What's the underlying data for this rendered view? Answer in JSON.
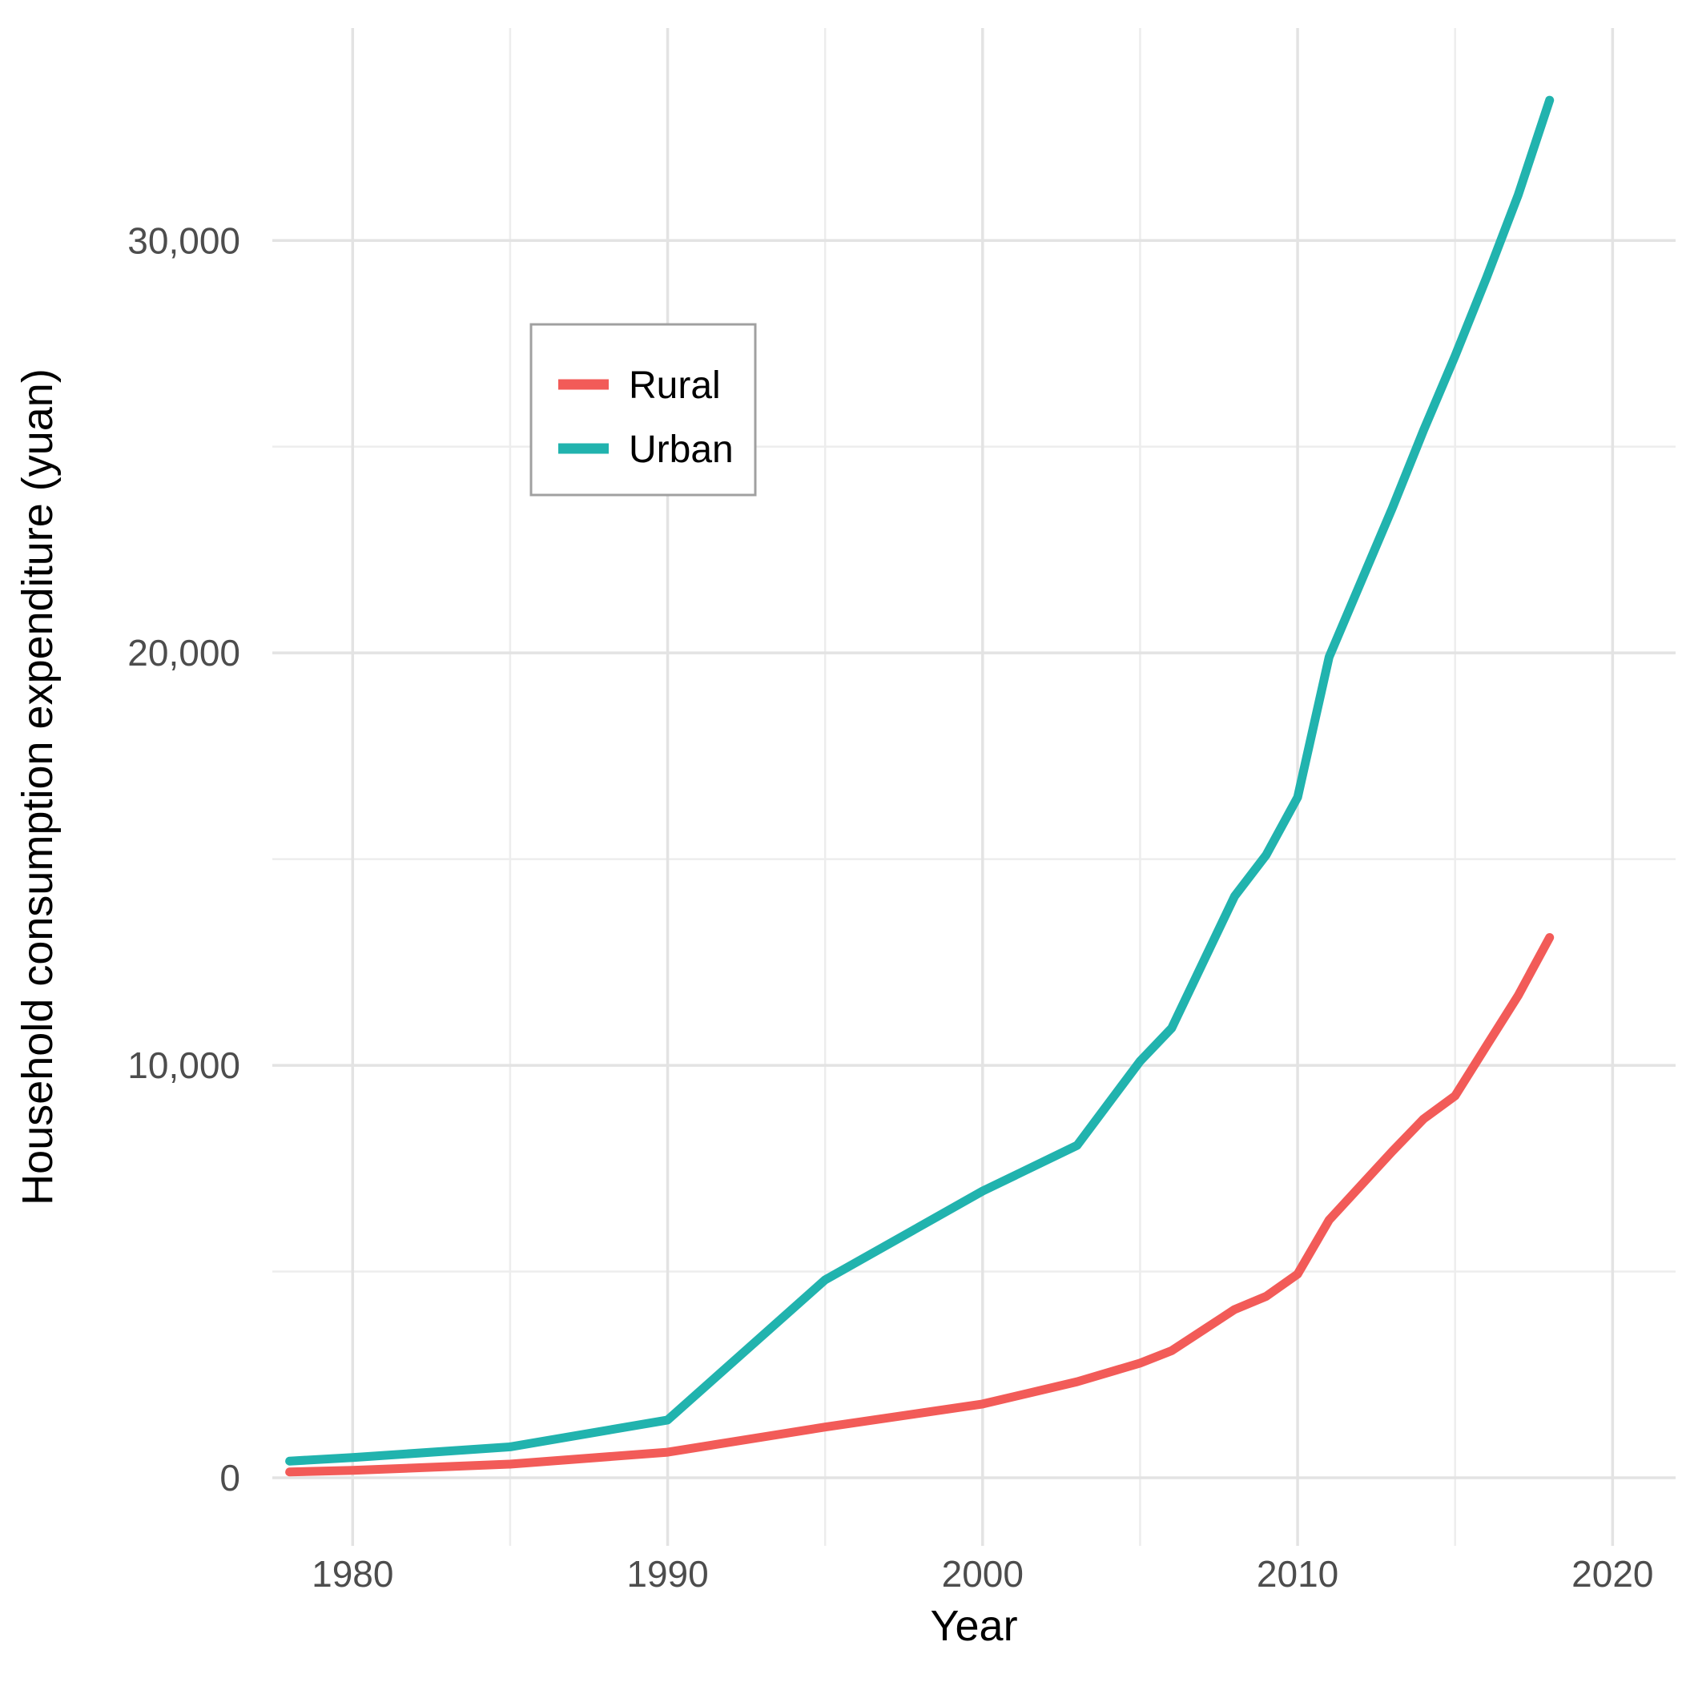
{
  "chart_data": {
    "type": "line",
    "title": "",
    "xlabel": "Year",
    "ylabel": "Household consumption expenditure (yuan)",
    "x_ticks": [
      1980,
      1990,
      2000,
      2010,
      2020
    ],
    "x_tick_labels": [
      "1980",
      "1990",
      "2000",
      "2010",
      "2020"
    ],
    "x_minor_ticks": [
      1985,
      1995,
      2005,
      2015
    ],
    "y_ticks": [
      0,
      10000,
      20000,
      30000
    ],
    "y_tick_labels": [
      "0",
      "10,000",
      "20,000",
      "30,000"
    ],
    "y_minor_ticks": [
      5000,
      15000,
      25000
    ],
    "xlim": [
      1977.45,
      2022.0
    ],
    "ylim": [
      -1650,
      35150
    ],
    "grid": true,
    "legend": {
      "position": "inside-top-left",
      "entries": [
        "Rural",
        "Urban"
      ]
    },
    "series": [
      {
        "name": "Rural",
        "color": "#F25B58",
        "points": [
          [
            1978,
            140
          ],
          [
            1980,
            180
          ],
          [
            1985,
            330
          ],
          [
            1990,
            620
          ],
          [
            1995,
            1230
          ],
          [
            2000,
            1790
          ],
          [
            2003,
            2330
          ],
          [
            2005,
            2780
          ],
          [
            2006,
            3080
          ],
          [
            2008,
            4080
          ],
          [
            2009,
            4400
          ],
          [
            2010,
            4940
          ],
          [
            2011,
            6250
          ],
          [
            2012,
            7080
          ],
          [
            2013,
            7910
          ],
          [
            2014,
            8700
          ],
          [
            2015,
            9260
          ],
          [
            2016,
            10475
          ],
          [
            2017,
            11690
          ],
          [
            2018,
            13100
          ]
        ]
      },
      {
        "name": "Urban",
        "color": "#21B3AE",
        "points": [
          [
            1978,
            405
          ],
          [
            1980,
            490
          ],
          [
            1985,
            750
          ],
          [
            1990,
            1400
          ],
          [
            1995,
            4800
          ],
          [
            2000,
            6950
          ],
          [
            2003,
            8060
          ],
          [
            2005,
            10100
          ],
          [
            2006,
            10900
          ],
          [
            2008,
            14100
          ],
          [
            2009,
            15100
          ],
          [
            2010,
            16500
          ],
          [
            2011,
            19900
          ],
          [
            2012,
            21700
          ],
          [
            2013,
            23500
          ],
          [
            2014,
            25400
          ],
          [
            2015,
            27200
          ],
          [
            2016,
            29100
          ],
          [
            2017,
            31100
          ],
          [
            2018,
            33400
          ]
        ]
      }
    ]
  },
  "colors": {
    "background": "#ffffff",
    "grid_major": "#E3E3E3",
    "grid_minor": "#EDEDED",
    "tick_text": "#4D4D4D",
    "axis_title_text": "#000000",
    "legend_border": "#A0A0A0",
    "legend_background": "#ffffff"
  }
}
